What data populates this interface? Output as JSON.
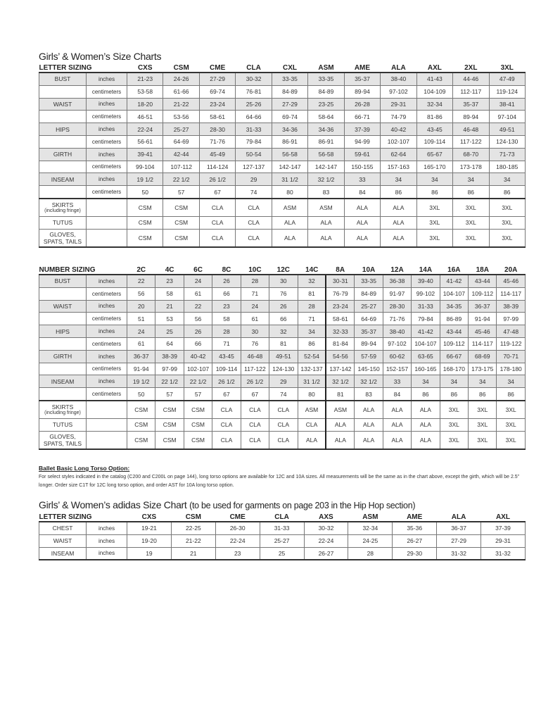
{
  "title1": "Girls’ & Women’s Size Charts",
  "letter_table": {
    "header_label": "LETTER SIZING",
    "sizes": [
      "CXS",
      "CSM",
      "CME",
      "CLA",
      "CXL",
      "ASM",
      "AME",
      "ALA",
      "AXL",
      "2XL",
      "3XL"
    ],
    "rows": [
      {
        "label": "BUST",
        "unit": "inches",
        "values": [
          "21-23",
          "24-26",
          "27-29",
          "30-32",
          "33-35",
          "33-35",
          "35-37",
          "38-40",
          "41-43",
          "44-46",
          "47-49"
        ]
      },
      {
        "label": "",
        "unit": "centimeters",
        "values": [
          "53-58",
          "61-66",
          "69-74",
          "76-81",
          "84-89",
          "84-89",
          "89-94",
          "97-102",
          "104-109",
          "112-117",
          "119-124"
        ]
      },
      {
        "label": "WAIST",
        "unit": "inches",
        "values": [
          "18-20",
          "21-22",
          "23-24",
          "25-26",
          "27-29",
          "23-25",
          "26-28",
          "29-31",
          "32-34",
          "35-37",
          "38-41"
        ]
      },
      {
        "label": "",
        "unit": "centimeters",
        "values": [
          "46-51",
          "53-56",
          "58-61",
          "64-66",
          "69-74",
          "58-64",
          "66-71",
          "74-79",
          "81-86",
          "89-94",
          "97-104"
        ]
      },
      {
        "label": "HIPS",
        "unit": "inches",
        "values": [
          "22-24",
          "25-27",
          "28-30",
          "31-33",
          "34-36",
          "34-36",
          "37-39",
          "40-42",
          "43-45",
          "46-48",
          "49-51"
        ]
      },
      {
        "label": "",
        "unit": "centimeters",
        "values": [
          "56-61",
          "64-69",
          "71-76",
          "79-84",
          "86-91",
          "86-91",
          "94-99",
          "102-107",
          "109-114",
          "117-122",
          "124-130"
        ]
      },
      {
        "label": "GIRTH",
        "unit": "inches",
        "values": [
          "39-41",
          "42-44",
          "45-49",
          "50-54",
          "56-58",
          "56-58",
          "59-61",
          "62-64",
          "65-67",
          "68-70",
          "71-73"
        ]
      },
      {
        "label": "",
        "unit": "centimeters",
        "values": [
          "99-104",
          "107-112",
          "114-124",
          "127-137",
          "142-147",
          "142-147",
          "150-155",
          "157-163",
          "165-170",
          "173-178",
          "180-185"
        ]
      },
      {
        "label": "INSEAM",
        "unit": "inches",
        "values": [
          "19 1/2",
          "22 1/2",
          "26 1/2",
          "29",
          "31 1/2",
          "32 1/2",
          "33",
          "34",
          "34",
          "34",
          "34"
        ]
      },
      {
        "label": "",
        "unit": "centimeters",
        "values": [
          "50",
          "57",
          "67",
          "74",
          "80",
          "83",
          "84",
          "86",
          "86",
          "86",
          "86"
        ]
      }
    ],
    "accessories": [
      {
        "label": "SKIRTS",
        "note": "(including fringe)",
        "values": [
          "CSM",
          "CSM",
          "CLA",
          "CLA",
          "ASM",
          "ASM",
          "ALA",
          "ALA",
          "3XL",
          "3XL",
          "3XL"
        ]
      },
      {
        "label": "TUTUS",
        "note": "",
        "values": [
          "CSM",
          "CSM",
          "CLA",
          "CLA",
          "ALA",
          "ALA",
          "ALA",
          "ALA",
          "3XL",
          "3XL",
          "3XL"
        ]
      },
      {
        "label": "GLOVES, SPATS, TAILS",
        "note": "",
        "values": [
          "CSM",
          "CSM",
          "CLA",
          "CLA",
          "ALA",
          "ALA",
          "ALA",
          "ALA",
          "3XL",
          "3XL",
          "3XL"
        ]
      }
    ]
  },
  "number_table": {
    "header_label": "NUMBER SIZING",
    "sizes": [
      "2C",
      "4C",
      "6C",
      "8C",
      "10C",
      "12C",
      "14C",
      "8A",
      "10A",
      "12A",
      "14A",
      "16A",
      "18A",
      "20A"
    ],
    "divider_before": 7,
    "rows": [
      {
        "label": "BUST",
        "unit": "inches",
        "values": [
          "22",
          "23",
          "24",
          "26",
          "28",
          "30",
          "32",
          "30-31",
          "33-35",
          "36-38",
          "39-40",
          "41-42",
          "43-44",
          "45-46"
        ]
      },
      {
        "label": "",
        "unit": "centimeters",
        "values": [
          "56",
          "58",
          "61",
          "66",
          "71",
          "76",
          "81",
          "76-79",
          "84-89",
          "91-97",
          "99-102",
          "104-107",
          "109-112",
          "114-117"
        ]
      },
      {
        "label": "WAIST",
        "unit": "inches",
        "values": [
          "20",
          "21",
          "22",
          "23",
          "24",
          "26",
          "28",
          "23-24",
          "25-27",
          "28-30",
          "31-33",
          "34-35",
          "36-37",
          "38-39"
        ]
      },
      {
        "label": "",
        "unit": "centimeters",
        "values": [
          "51",
          "53",
          "56",
          "58",
          "61",
          "66",
          "71",
          "58-61",
          "64-69",
          "71-76",
          "79-84",
          "86-89",
          "91-94",
          "97-99"
        ]
      },
      {
        "label": "HIPS",
        "unit": "inches",
        "values": [
          "24",
          "25",
          "26",
          "28",
          "30",
          "32",
          "34",
          "32-33",
          "35-37",
          "38-40",
          "41-42",
          "43-44",
          "45-46",
          "47-48"
        ]
      },
      {
        "label": "",
        "unit": "centimeters",
        "values": [
          "61",
          "64",
          "66",
          "71",
          "76",
          "81",
          "86",
          "81-84",
          "89-94",
          "97-102",
          "104-107",
          "109-112",
          "114-117",
          "119-122"
        ]
      },
      {
        "label": "GIRTH",
        "unit": "inches",
        "values": [
          "36-37",
          "38-39",
          "40-42",
          "43-45",
          "46-48",
          "49-51",
          "52-54",
          "54-56",
          "57-59",
          "60-62",
          "63-65",
          "66-67",
          "68-69",
          "70-71"
        ]
      },
      {
        "label": "",
        "unit": "centimeters",
        "values": [
          "91-94",
          "97-99",
          "102-107",
          "109-114",
          "117-122",
          "124-130",
          "132-137",
          "137-142",
          "145-150",
          "152-157",
          "160-165",
          "168-170",
          "173-175",
          "178-180"
        ]
      },
      {
        "label": "INSEAM",
        "unit": "inches",
        "values": [
          "19 1/2",
          "22 1/2",
          "22 1/2",
          "26 1/2",
          "26 1/2",
          "29",
          "31 1/2",
          "32 1/2",
          "32 1/2",
          "33",
          "34",
          "34",
          "34",
          "34"
        ]
      },
      {
        "label": "",
        "unit": "centimeters",
        "values": [
          "50",
          "57",
          "57",
          "67",
          "67",
          "74",
          "80",
          "81",
          "83",
          "84",
          "86",
          "86",
          "86",
          "86"
        ]
      }
    ],
    "accessories": [
      {
        "label": "SKIRTS",
        "note": "(including fringe)",
        "values": [
          "CSM",
          "CSM",
          "CSM",
          "CLA",
          "CLA",
          "CLA",
          "ASM",
          "ASM",
          "ALA",
          "ALA",
          "ALA",
          "3XL",
          "3XL",
          "3XL"
        ]
      },
      {
        "label": "TUTUS",
        "note": "",
        "values": [
          "CSM",
          "CSM",
          "CSM",
          "CLA",
          "CLA",
          "CLA",
          "CLA",
          "ALA",
          "ALA",
          "ALA",
          "ALA",
          "3XL",
          "3XL",
          "3XL"
        ]
      },
      {
        "label": "GLOVES, SPATS, TAILS",
        "note": "",
        "values": [
          "CSM",
          "CSM",
          "CSM",
          "CLA",
          "CLA",
          "CLA",
          "ALA",
          "ALA",
          "ALA",
          "ALA",
          "ALA",
          "3XL",
          "3XL",
          "3XL"
        ]
      }
    ]
  },
  "footnote": {
    "heading": "Ballet Basic Long Torso Option:",
    "body": "For select styles indicated in the catalog (C200 and C200L on page 144), long torso options are available for 12C and 10A sizes. All measurements will be the same as in the chart above, except the girth, which will be 2.5” longer. Order size C1T for 12C long torso option, and order AST for 10A long torso option."
  },
  "title2": "Girls’ & Women’s adidas Size Chart",
  "title2_sub": "(to be used for garments on page 203 in the Hip Hop section)",
  "adidas_table": {
    "header_label": "LETTER SIZING",
    "sizes": [
      "CXS",
      "CSM",
      "CME",
      "CLA",
      "AXS",
      "ASM",
      "AME",
      "ALA",
      "AXL"
    ],
    "rows": [
      {
        "label": "CHEST",
        "unit": "inches",
        "values": [
          "19-21",
          "22-25",
          "26-30",
          "31-33",
          "30-32",
          "32-34",
          "35-36",
          "36-37",
          "37-39"
        ]
      },
      {
        "label": "WAIST",
        "unit": "inches",
        "values": [
          "19-20",
          "21-22",
          "22-24",
          "25-27",
          "22-24",
          "24-25",
          "26-27",
          "27-29",
          "29-31"
        ]
      },
      {
        "label": "INSEAM",
        "unit": "inches",
        "values": [
          "19",
          "21",
          "23",
          "25",
          "26-27",
          "28",
          "29-30",
          "31-32",
          "31-32"
        ]
      }
    ]
  }
}
